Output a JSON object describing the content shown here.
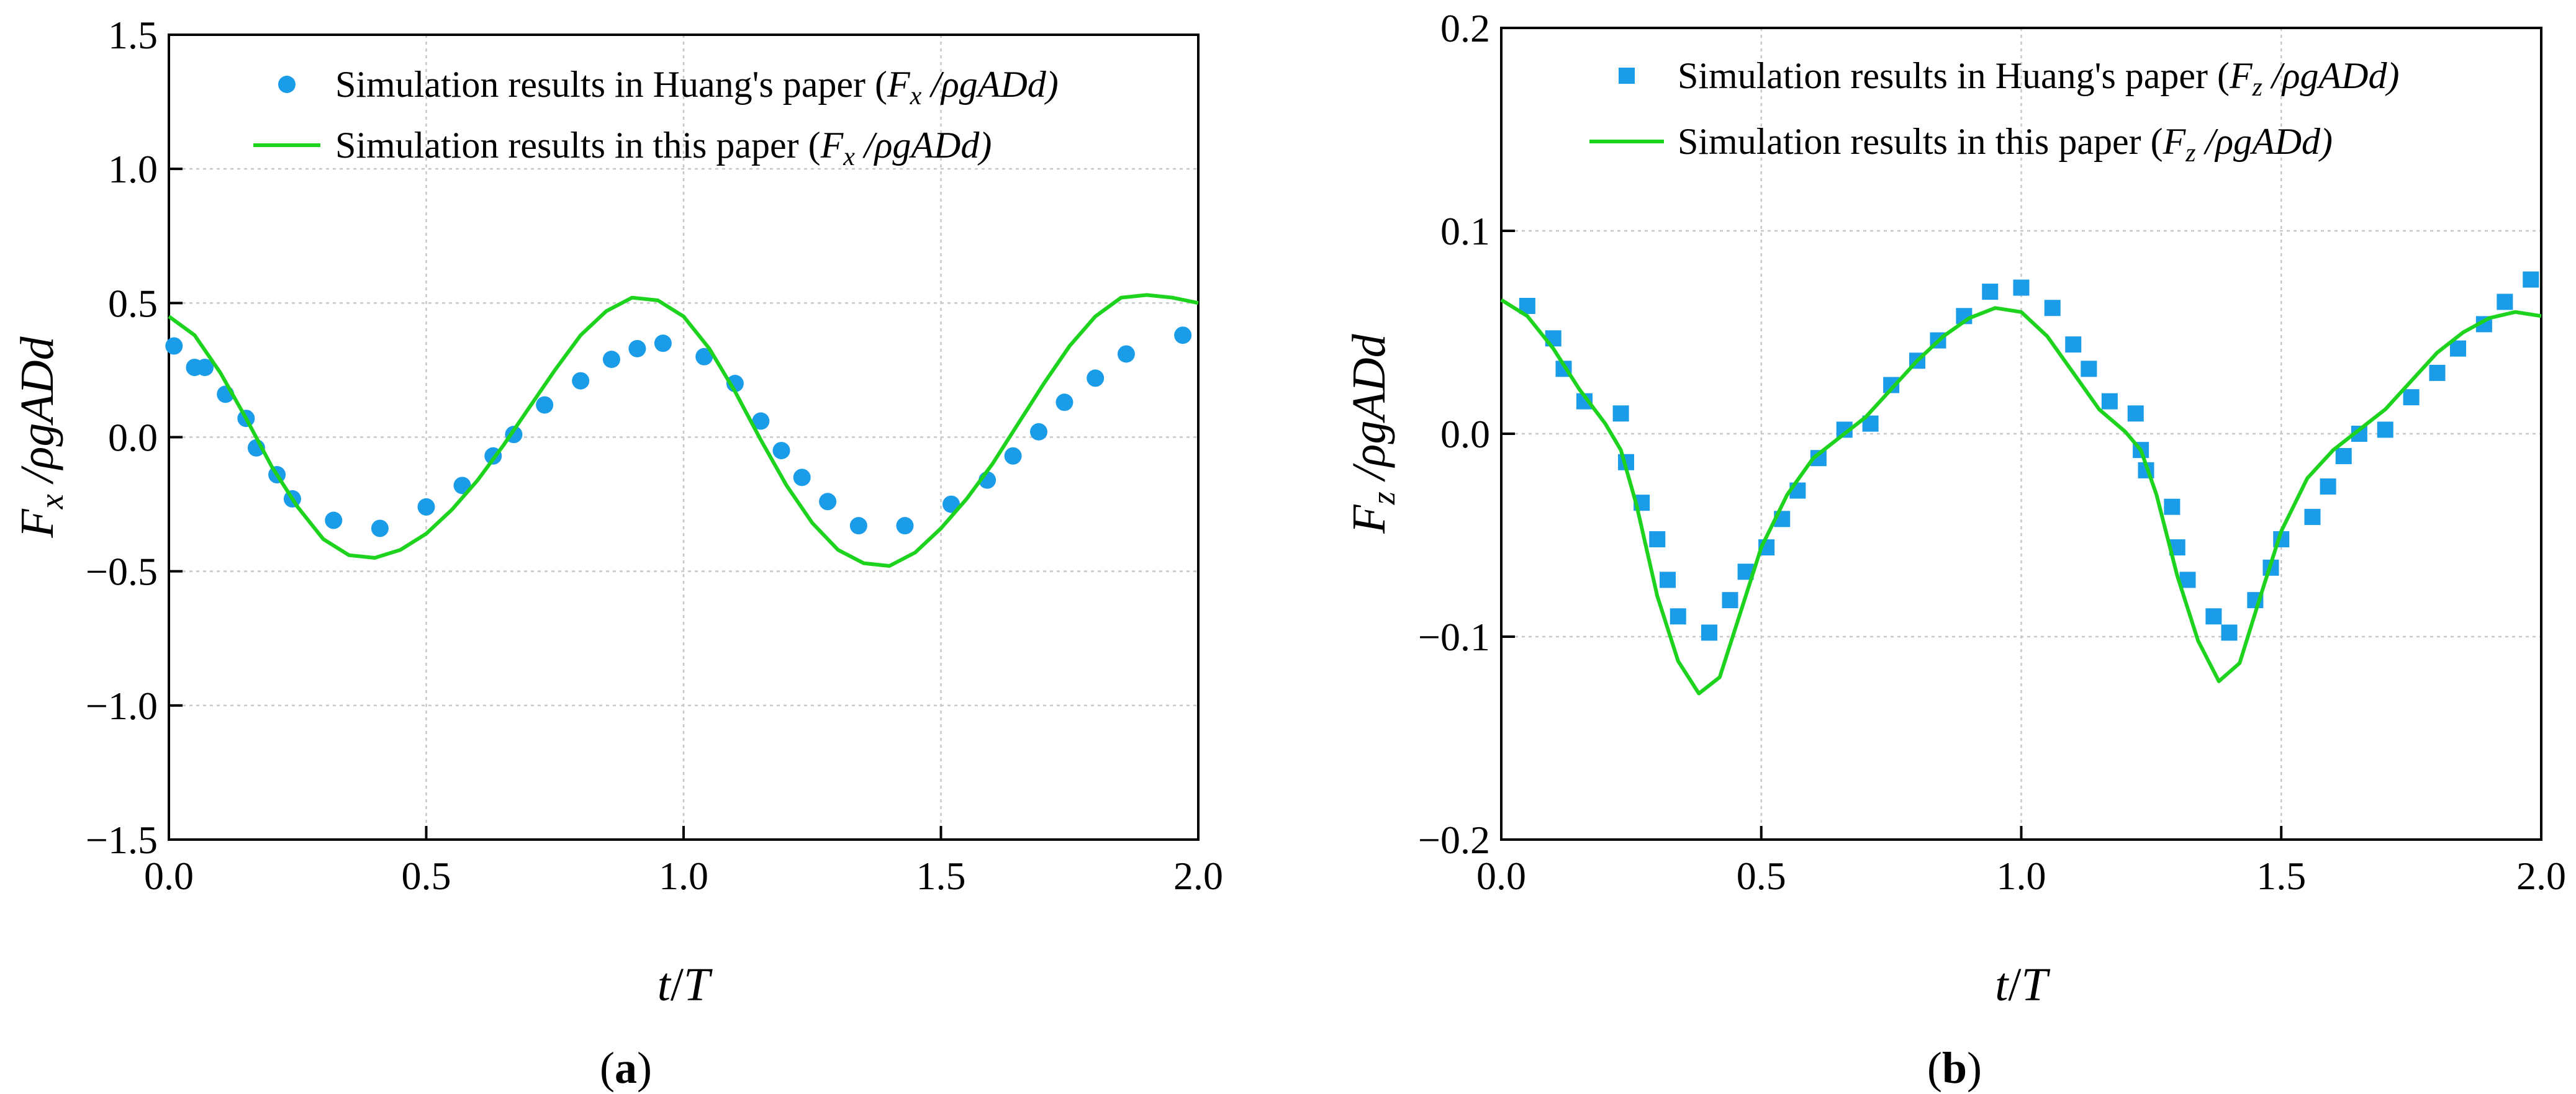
{
  "chart_data": [
    {
      "type": "line",
      "panel_label": "a",
      "xlabel_var": "t",
      "xlabel_den": "T",
      "ylabel_num": "F",
      "ylabel_sub": "x",
      "ylabel_den": "ρgADd",
      "xlim": [
        0.0,
        2.0
      ],
      "ylim": [
        -1.5,
        1.5
      ],
      "x_ticks": [
        "0.0",
        "0.5",
        "1.0",
        "1.5",
        "2.0"
      ],
      "x_tick_values": [
        0.0,
        0.5,
        1.0,
        1.5,
        2.0
      ],
      "y_ticks": [
        "−1.5",
        "−1.0",
        "−0.5",
        "0.0",
        "0.5",
        "1.0",
        "1.5"
      ],
      "y_tick_values": [
        -1.5,
        -1.0,
        -0.5,
        0.0,
        0.5,
        1.0,
        1.5
      ],
      "grid": true,
      "legend_position": "top",
      "series": [
        {
          "name": "Simulation results in Huang's  paper",
          "legend_prefix": "Simulation results in Huang's  paper (",
          "legend_sym": "F",
          "legend_sub": "x",
          "legend_rest": " /ρgADd)",
          "type": "scatter",
          "marker": "circle",
          "color": "#1a9ce8",
          "x": [
            0.01,
            0.05,
            0.07,
            0.11,
            0.15,
            0.17,
            0.21,
            0.24,
            0.32,
            0.41,
            0.5,
            0.57,
            0.63,
            0.67,
            0.73,
            0.8,
            0.86,
            0.91,
            0.96,
            1.04,
            1.1,
            1.15,
            1.19,
            1.23,
            1.28,
            1.34,
            1.43,
            1.52,
            1.59,
            1.64,
            1.69,
            1.74,
            1.8,
            1.86,
            1.97
          ],
          "y": [
            0.34,
            0.26,
            0.26,
            0.16,
            0.07,
            -0.04,
            -0.14,
            -0.23,
            -0.31,
            -0.34,
            -0.26,
            -0.18,
            -0.07,
            0.01,
            0.12,
            0.21,
            0.29,
            0.33,
            0.35,
            0.3,
            0.2,
            0.06,
            -0.05,
            -0.15,
            -0.24,
            -0.33,
            -0.33,
            -0.25,
            -0.16,
            -0.07,
            0.02,
            0.13,
            0.22,
            0.31,
            0.38
          ]
        },
        {
          "name": "Simulation results in this paper",
          "legend_prefix": "Simulation results in this paper (",
          "legend_sym": "F",
          "legend_sub": "x",
          "legend_rest": " /ρgADd)",
          "type": "line",
          "color": "#1ed31e",
          "x": [
            0.0,
            0.05,
            0.1,
            0.15,
            0.2,
            0.25,
            0.3,
            0.35,
            0.4,
            0.45,
            0.5,
            0.55,
            0.6,
            0.65,
            0.7,
            0.75,
            0.8,
            0.85,
            0.9,
            0.95,
            1.0,
            1.05,
            1.1,
            1.15,
            1.2,
            1.25,
            1.3,
            1.35,
            1.4,
            1.45,
            1.5,
            1.55,
            1.6,
            1.65,
            1.7,
            1.75,
            1.8,
            1.85,
            1.9,
            1.95,
            2.0
          ],
          "y": [
            0.45,
            0.38,
            0.24,
            0.07,
            -0.11,
            -0.26,
            -0.38,
            -0.44,
            -0.45,
            -0.42,
            -0.36,
            -0.27,
            -0.16,
            -0.03,
            0.11,
            0.25,
            0.38,
            0.47,
            0.52,
            0.51,
            0.45,
            0.33,
            0.17,
            -0.01,
            -0.18,
            -0.32,
            -0.42,
            -0.47,
            -0.48,
            -0.43,
            -0.34,
            -0.23,
            -0.1,
            0.05,
            0.2,
            0.34,
            0.45,
            0.52,
            0.53,
            0.52,
            0.5
          ]
        }
      ]
    },
    {
      "type": "line",
      "panel_label": "b",
      "xlabel_var": "t",
      "xlabel_den": "T",
      "ylabel_num": "F",
      "ylabel_sub": "z",
      "ylabel_den": "ρgADd",
      "xlim": [
        0.0,
        2.0
      ],
      "ylim": [
        -0.2,
        0.2
      ],
      "x_ticks": [
        "0.0",
        "0.5",
        "1.0",
        "1.5",
        "2.0"
      ],
      "x_tick_values": [
        0.0,
        0.5,
        1.0,
        1.5,
        2.0
      ],
      "y_ticks": [
        "−0.2",
        "−0.1",
        "0.0",
        "0.1",
        "0.2"
      ],
      "y_tick_values": [
        -0.2,
        -0.1,
        0.0,
        0.1,
        0.2
      ],
      "grid": true,
      "legend_position": "top",
      "series": [
        {
          "name": "Simulation results in Huang's  paper",
          "legend_prefix": "Simulation results in Huang's  paper (",
          "legend_sym": "F",
          "legend_sub": "z",
          "legend_rest": " /ρgADd)",
          "type": "scatter",
          "marker": "square",
          "color": "#1a9ce8",
          "x": [
            0.05,
            0.1,
            0.12,
            0.16,
            0.23,
            0.24,
            0.27,
            0.3,
            0.32,
            0.34,
            0.4,
            0.44,
            0.47,
            0.51,
            0.54,
            0.57,
            0.61,
            0.66,
            0.71,
            0.75,
            0.8,
            0.84,
            0.89,
            0.94,
            1.0,
            1.06,
            1.1,
            1.13,
            1.17,
            1.22,
            1.23,
            1.24,
            1.29,
            1.3,
            1.32,
            1.37,
            1.4,
            1.45,
            1.48,
            1.5,
            1.56,
            1.59,
            1.62,
            1.65,
            1.7,
            1.75,
            1.8,
            1.84,
            1.89,
            1.93,
            1.98
          ],
          "y": [
            0.063,
            0.047,
            0.032,
            0.016,
            0.01,
            -0.014,
            -0.034,
            -0.052,
            -0.072,
            -0.09,
            -0.098,
            -0.082,
            -0.068,
            -0.056,
            -0.042,
            -0.028,
            -0.012,
            0.002,
            0.005,
            0.024,
            0.036,
            0.046,
            0.058,
            0.07,
            0.072,
            0.062,
            0.044,
            0.032,
            0.016,
            0.01,
            -0.008,
            -0.018,
            -0.036,
            -0.056,
            -0.072,
            -0.09,
            -0.098,
            -0.082,
            -0.066,
            -0.052,
            -0.041,
            -0.026,
            -0.011,
            0.0,
            0.002,
            0.018,
            0.03,
            0.042,
            0.054,
            0.065,
            0.076
          ]
        },
        {
          "name": "Simulation results in this paper",
          "legend_prefix": "Simulation results in this paper (",
          "legend_sym": "F",
          "legend_sub": "z",
          "legend_rest": " /ρgADd)",
          "type": "line",
          "color": "#1ed31e",
          "x": [
            0.0,
            0.05,
            0.1,
            0.15,
            0.2,
            0.23,
            0.26,
            0.3,
            0.34,
            0.38,
            0.42,
            0.46,
            0.5,
            0.55,
            0.6,
            0.65,
            0.7,
            0.75,
            0.8,
            0.85,
            0.9,
            0.95,
            1.0,
            1.05,
            1.1,
            1.15,
            1.2,
            1.23,
            1.26,
            1.3,
            1.34,
            1.38,
            1.42,
            1.46,
            1.5,
            1.55,
            1.6,
            1.65,
            1.7,
            1.75,
            1.8,
            1.85,
            1.9,
            1.95,
            2.0
          ],
          "y": [
            0.066,
            0.058,
            0.042,
            0.022,
            0.005,
            -0.008,
            -0.035,
            -0.08,
            -0.112,
            -0.128,
            -0.12,
            -0.088,
            -0.056,
            -0.03,
            -0.012,
            -0.002,
            0.008,
            0.022,
            0.036,
            0.048,
            0.057,
            0.062,
            0.06,
            0.048,
            0.03,
            0.012,
            0.001,
            -0.008,
            -0.03,
            -0.07,
            -0.102,
            -0.122,
            -0.113,
            -0.08,
            -0.048,
            -0.022,
            -0.008,
            0.002,
            0.012,
            0.026,
            0.04,
            0.05,
            0.057,
            0.06,
            0.058
          ]
        }
      ]
    }
  ]
}
